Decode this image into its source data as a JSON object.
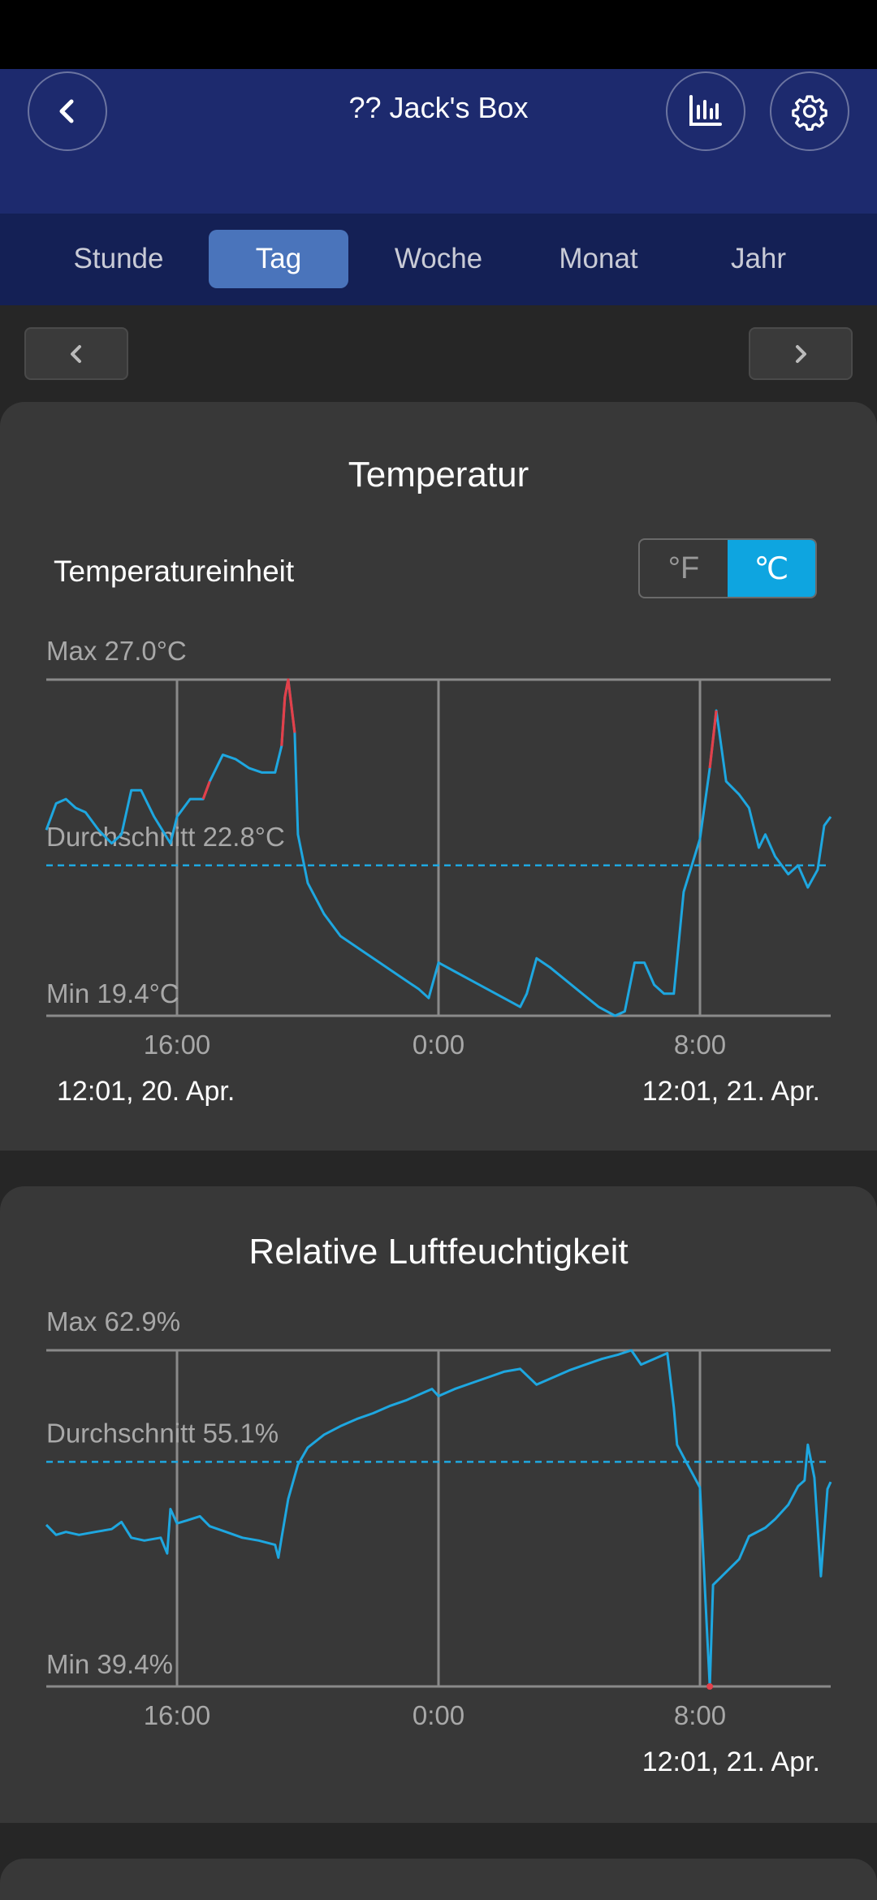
{
  "header": {
    "title": "?? Jack's Box"
  },
  "tabs": [
    {
      "label": "Stunde",
      "active": false
    },
    {
      "label": "Tag",
      "active": true
    },
    {
      "label": "Woche",
      "active": false
    },
    {
      "label": "Monat",
      "active": false
    },
    {
      "label": "Jahr",
      "active": false
    }
  ],
  "temperature": {
    "title": "Temperatur",
    "unit_label": "Temperatureinheit",
    "unit_f": "°F",
    "unit_c": "℃",
    "selected_unit": "C",
    "max_label": "Max 27.0°C",
    "avg_label": "Durchschnitt 22.8°C",
    "min_label": "Min 19.4°C",
    "date_start": "12:01,  20. Apr.",
    "date_end": "12:01,  21. Apr."
  },
  "humidity": {
    "title": "Relative Luftfeuchtigkeit",
    "max_label": "Max 62.9%",
    "avg_label": "Durchschnitt 55.1%",
    "min_label": "Min 39.4%",
    "date_end": "12:01,  21. Apr."
  },
  "colors": {
    "line": "#1ea7e0",
    "peak": "#e2404a",
    "grid": "#8a8a8a"
  },
  "chart_data": [
    {
      "type": "line",
      "title": "Temperatur",
      "x_unit": "hours since 12:01, 20. Apr.",
      "x_ticks": [
        {
          "x": 4,
          "label": "16:00"
        },
        {
          "x": 12,
          "label": "0:00"
        },
        {
          "x": 20,
          "label": "8:00"
        }
      ],
      "xlim": [
        0,
        24
      ],
      "ylim": [
        19.4,
        27.0
      ],
      "max": 27.0,
      "avg": 22.8,
      "min": 19.4,
      "series": [
        {
          "points": [
            [
              0,
              23.6
            ],
            [
              0.3,
              24.2
            ],
            [
              0.6,
              24.3
            ],
            [
              0.9,
              24.1
            ],
            [
              1.2,
              24.0
            ],
            [
              1.6,
              23.6
            ],
            [
              2.0,
              23.3
            ],
            [
              2.3,
              23.5
            ],
            [
              2.6,
              24.5
            ],
            [
              2.9,
              24.5
            ],
            [
              3.3,
              23.9
            ],
            [
              3.8,
              23.3
            ],
            [
              4.0,
              23.9
            ],
            [
              4.4,
              24.3
            ],
            [
              4.8,
              24.3
            ],
            [
              5.0,
              24.7
            ],
            [
              5.4,
              25.3
            ],
            [
              5.8,
              25.2
            ],
            [
              6.2,
              25.0
            ],
            [
              6.6,
              24.9
            ],
            [
              7.0,
              24.9
            ],
            [
              7.2,
              25.5
            ],
            [
              7.3,
              26.6
            ],
            [
              7.4,
              27.0
            ],
            [
              7.6,
              25.8
            ],
            [
              7.7,
              23.5
            ],
            [
              8.0,
              22.4
            ],
            [
              8.5,
              21.7
            ],
            [
              9.0,
              21.2
            ],
            [
              9.6,
              20.9
            ],
            [
              10.2,
              20.6
            ],
            [
              10.8,
              20.3
            ],
            [
              11.4,
              20.0
            ],
            [
              11.7,
              19.8
            ],
            [
              12.0,
              20.6
            ],
            [
              12.5,
              20.4
            ],
            [
              13.0,
              20.2
            ],
            [
              13.5,
              20.0
            ],
            [
              14.0,
              19.8
            ],
            [
              14.5,
              19.6
            ],
            [
              14.7,
              19.9
            ],
            [
              15.0,
              20.7
            ],
            [
              15.4,
              20.5
            ],
            [
              15.9,
              20.2
            ],
            [
              16.4,
              19.9
            ],
            [
              16.9,
              19.6
            ],
            [
              17.4,
              19.4
            ],
            [
              17.7,
              19.5
            ],
            [
              18.0,
              20.6
            ],
            [
              18.3,
              20.6
            ],
            [
              18.6,
              20.1
            ],
            [
              18.9,
              19.9
            ],
            [
              19.2,
              19.9
            ],
            [
              19.5,
              22.2
            ],
            [
              20.0,
              23.4
            ],
            [
              20.3,
              25.0
            ],
            [
              20.5,
              26.3
            ],
            [
              20.8,
              24.7
            ],
            [
              21.2,
              24.4
            ],
            [
              21.5,
              24.1
            ],
            [
              21.8,
              23.2
            ],
            [
              22.0,
              23.5
            ],
            [
              22.3,
              23.0
            ],
            [
              22.7,
              22.6
            ],
            [
              23.0,
              22.8
            ],
            [
              23.3,
              22.3
            ],
            [
              23.6,
              22.7
            ],
            [
              23.8,
              23.7
            ],
            [
              24.0,
              23.9
            ]
          ],
          "peak_segments": [
            [
              4.8,
              5.3
            ],
            [
              7.1,
              7.6
            ],
            [
              20.3,
              20.6
            ]
          ]
        }
      ]
    },
    {
      "type": "line",
      "title": "Relative Luftfeuchtigkeit",
      "x_unit": "hours since 12:01, 20. Apr.",
      "x_ticks": [
        {
          "x": 4,
          "label": "16:00"
        },
        {
          "x": 12,
          "label": "0:00"
        },
        {
          "x": 20,
          "label": "8:00"
        }
      ],
      "xlim": [
        0,
        24
      ],
      "ylim": [
        39.4,
        62.9
      ],
      "max": 62.9,
      "avg": 55.1,
      "min": 39.4,
      "series": [
        {
          "points": [
            [
              0,
              50.7
            ],
            [
              0.3,
              50.0
            ],
            [
              0.6,
              50.2
            ],
            [
              1.0,
              50.0
            ],
            [
              1.5,
              50.2
            ],
            [
              2.0,
              50.4
            ],
            [
              2.3,
              50.9
            ],
            [
              2.6,
              49.8
            ],
            [
              3.0,
              49.6
            ],
            [
              3.5,
              49.8
            ],
            [
              3.7,
              48.7
            ],
            [
              3.8,
              51.8
            ],
            [
              4.0,
              50.8
            ],
            [
              4.3,
              51.0
            ],
            [
              4.7,
              51.3
            ],
            [
              5.0,
              50.6
            ],
            [
              5.5,
              50.2
            ],
            [
              6.0,
              49.8
            ],
            [
              6.5,
              49.6
            ],
            [
              7.0,
              49.3
            ],
            [
              7.1,
              48.4
            ],
            [
              7.2,
              49.8
            ],
            [
              7.4,
              52.5
            ],
            [
              7.7,
              54.9
            ],
            [
              8.0,
              56.1
            ],
            [
              8.5,
              57.0
            ],
            [
              9.0,
              57.6
            ],
            [
              9.5,
              58.1
            ],
            [
              10.0,
              58.5
            ],
            [
              10.5,
              59.0
            ],
            [
              11.0,
              59.4
            ],
            [
              11.5,
              59.9
            ],
            [
              11.8,
              60.2
            ],
            [
              12.0,
              59.7
            ],
            [
              12.5,
              60.2
            ],
            [
              13.0,
              60.6
            ],
            [
              13.5,
              61.0
            ],
            [
              14.0,
              61.4
            ],
            [
              14.5,
              61.6
            ],
            [
              15.0,
              60.5
            ],
            [
              15.5,
              61.0
            ],
            [
              16.0,
              61.5
            ],
            [
              16.5,
              61.9
            ],
            [
              17.0,
              62.3
            ],
            [
              17.5,
              62.6
            ],
            [
              17.9,
              62.9
            ],
            [
              18.2,
              61.9
            ],
            [
              18.6,
              62.3
            ],
            [
              19.0,
              62.7
            ],
            [
              19.2,
              58.9
            ],
            [
              19.3,
              56.3
            ],
            [
              19.6,
              55.0
            ],
            [
              20.0,
              53.3
            ],
            [
              20.2,
              44.0
            ],
            [
              20.3,
              39.4
            ],
            [
              20.4,
              46.5
            ],
            [
              20.8,
              47.4
            ],
            [
              21.2,
              48.3
            ],
            [
              21.5,
              49.9
            ],
            [
              22.0,
              50.5
            ],
            [
              22.3,
              51.1
            ],
            [
              22.7,
              52.1
            ],
            [
              23.0,
              53.4
            ],
            [
              23.2,
              53.8
            ],
            [
              23.3,
              56.3
            ],
            [
              23.5,
              54.0
            ],
            [
              23.7,
              47.1
            ],
            [
              23.9,
              53.2
            ],
            [
              24.0,
              53.7
            ]
          ],
          "peak_segments": [
            [
              20.25,
              20.35
            ]
          ]
        }
      ]
    }
  ]
}
